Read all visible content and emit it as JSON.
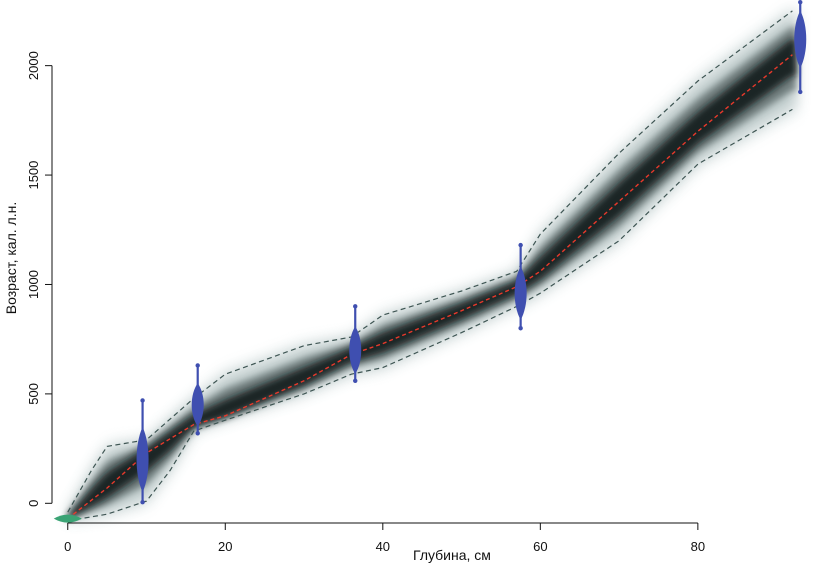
{
  "chart_data": {
    "type": "line",
    "title": "",
    "xlabel": "Глубина, см",
    "ylabel": "Возраст, кал. л.н.",
    "xlim": [
      -2,
      95
    ],
    "ylim": [
      -90,
      2300
    ],
    "xticks": [
      0,
      20,
      40,
      60,
      80
    ],
    "yticks": [
      0,
      500,
      1000,
      1500,
      2000
    ],
    "grid": false,
    "legend": "none",
    "colors": {
      "density": "#0d1414",
      "median": "#e8392b",
      "interval": "#3e5553",
      "dates": "#3f4fb0",
      "surface_date": "#3aa374",
      "axis": "#111111"
    },
    "median_line": {
      "x": [
        0,
        5,
        10,
        16,
        20,
        30,
        36,
        40,
        50,
        57,
        60,
        70,
        80,
        92
      ],
      "y": [
        -70,
        70,
        230,
        360,
        400,
        560,
        680,
        730,
        880,
        990,
        1060,
        1380,
        1700,
        2050
      ]
    },
    "interval_lower": {
      "x": [
        0,
        5,
        10,
        13,
        16,
        20,
        30,
        36,
        40,
        50,
        57,
        60,
        70,
        80,
        92
      ],
      "y": [
        -80,
        -50,
        10,
        150,
        330,
        380,
        500,
        590,
        620,
        780,
        900,
        960,
        1200,
        1550,
        1800
      ]
    },
    "interval_upper": {
      "x": [
        0,
        3,
        5,
        10,
        16,
        20,
        30,
        36,
        40,
        50,
        57,
        60,
        70,
        80,
        92
      ],
      "y": [
        -40,
        150,
        260,
        290,
        480,
        590,
        720,
        760,
        860,
        970,
        1060,
        1230,
        1600,
        1930,
        2250
      ]
    },
    "dated_samples": [
      {
        "depth": 9.5,
        "age": 200,
        "min": 5,
        "max": 470
      },
      {
        "depth": 16.5,
        "age": 450,
        "min": 320,
        "max": 630
      },
      {
        "depth": 36.5,
        "age": 700,
        "min": 560,
        "max": 900
      },
      {
        "depth": 57.5,
        "age": 960,
        "min": 800,
        "max": 1180
      },
      {
        "depth": 93,
        "age": 2120,
        "min": 1880,
        "max": 2290
      }
    ],
    "surface_sample": {
      "depth": 0,
      "age": -70
    }
  }
}
